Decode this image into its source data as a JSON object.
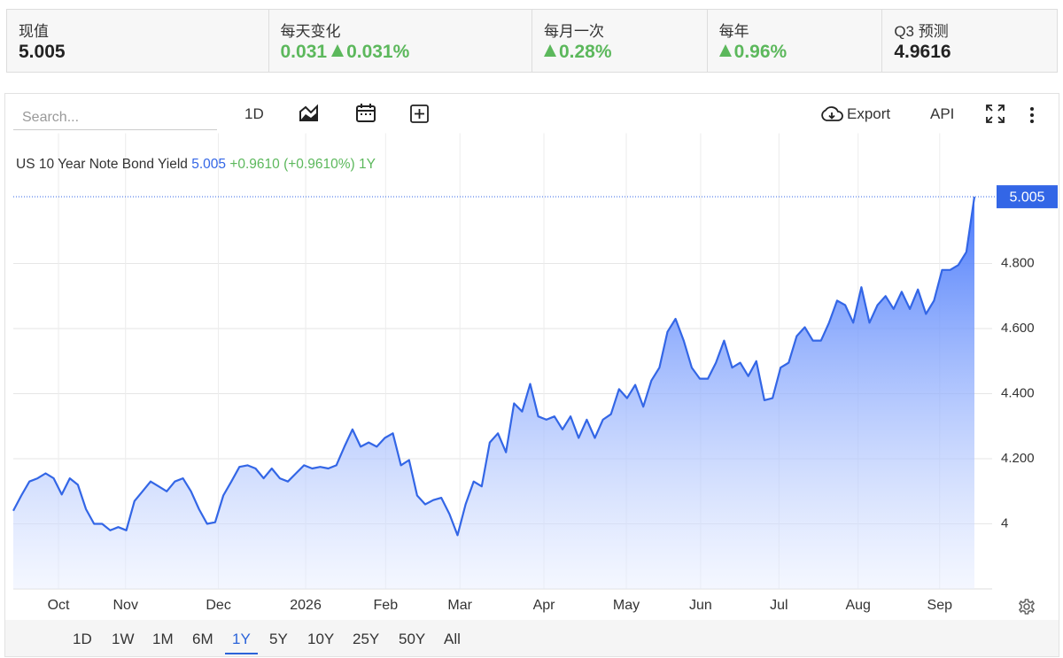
{
  "stats": [
    {
      "label": "现值",
      "value": "5.005"
    },
    {
      "label": "每天变化",
      "value": "0.031",
      "change": "0.031%"
    },
    {
      "label": "每月一次",
      "change": "0.28%"
    },
    {
      "label": "每年",
      "change": "0.96%"
    },
    {
      "label": "Q3 预测",
      "value": "4.9616"
    }
  ],
  "toolbar": {
    "search": "Search...",
    "interval": "1D",
    "export": "Export",
    "api": "API"
  },
  "range_buttons": [
    "1D",
    "1W",
    "1M",
    "6M",
    "1Y",
    "5Y",
    "10Y",
    "25Y",
    "50Y",
    "All"
  ],
  "active_range": "1Y",
  "chart_data": {
    "type": "area",
    "title": "US 10 Year Note Bond Yield",
    "legend": {
      "value": "5.005",
      "change": "+0.9610 (+0.9610%)",
      "period": "1Y"
    },
    "series": [
      {
        "name": "US 10 Year Note Bond Yield",
        "color": "#3366e6",
        "values": [
          4.04,
          4.087,
          4.13,
          4.14,
          4.155,
          4.14,
          4.09,
          4.14,
          4.12,
          4.045,
          4.0,
          4.0,
          3.98,
          3.99,
          3.98,
          4.07,
          4.1,
          4.13,
          4.115,
          4.1,
          4.13,
          4.14,
          4.1,
          4.045,
          4.0,
          4.005,
          4.087,
          4.13,
          4.175,
          4.18,
          4.17,
          4.14,
          4.17,
          4.14,
          4.13,
          4.155,
          4.18,
          4.17,
          4.175,
          4.17,
          4.18,
          4.237,
          4.29,
          4.237,
          4.25,
          4.237,
          4.264,
          4.278,
          4.18,
          4.196,
          4.087,
          4.06,
          4.073,
          4.08,
          4.03,
          3.965,
          4.06,
          4.13,
          4.115,
          4.25,
          4.278,
          4.22,
          4.37,
          4.345,
          4.43,
          4.33,
          4.32,
          4.33,
          4.29,
          4.33,
          4.264,
          4.32,
          4.264,
          4.32,
          4.337,
          4.414,
          4.386,
          4.427,
          4.36,
          4.44,
          4.48,
          4.59,
          4.63,
          4.563,
          4.48,
          4.446,
          4.446,
          4.495,
          4.563,
          4.48,
          4.495,
          4.454,
          4.5,
          4.38,
          4.386,
          4.48,
          4.495,
          4.577,
          4.604,
          4.563,
          4.563,
          4.618,
          4.686,
          4.672,
          4.618,
          4.727,
          4.618,
          4.672,
          4.7,
          4.66,
          4.713,
          4.66,
          4.72,
          4.645,
          4.686,
          4.78,
          4.78,
          4.795,
          4.835,
          5.005
        ]
      }
    ],
    "xlim": [
      0,
      119
    ],
    "xticks": [
      {
        "value": 5.6,
        "label": "Oct"
      },
      {
        "value": 13.9,
        "label": "Nov"
      },
      {
        "value": 25.4,
        "label": "Dec"
      },
      {
        "value": 36.2,
        "label": "2026"
      },
      {
        "value": 46.1,
        "label": "Feb"
      },
      {
        "value": 55.3,
        "label": "Mar"
      },
      {
        "value": 65.7,
        "label": "Apr"
      },
      {
        "value": 75.9,
        "label": "May"
      },
      {
        "value": 85.1,
        "label": "Jun"
      },
      {
        "value": 94.8,
        "label": "Jul"
      },
      {
        "value": 104.6,
        "label": "Aug"
      },
      {
        "value": 114.7,
        "label": "Sep"
      }
    ],
    "ylim": [
      3.8,
      5.2
    ],
    "yticks": [
      4,
      {
        "value": 4.2,
        "label": "4.200"
      },
      {
        "value": 4.4,
        "label": "4.400"
      },
      {
        "value": 4.6,
        "label": "4.600"
      },
      {
        "value": 4.8,
        "label": "4.800"
      }
    ],
    "grid": true
  }
}
